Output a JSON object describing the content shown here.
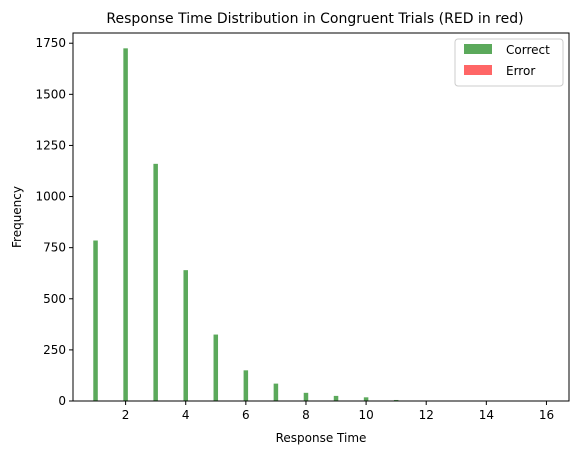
{
  "chart_data": {
    "type": "bar",
    "title": "Response Time Distribution in Congruent Trials (RED in red)",
    "xlabel": "Response Time",
    "ylabel": "Frequency",
    "xlim": [
      0.25,
      16.75
    ],
    "ylim": [
      0,
      1800
    ],
    "xticks": [
      2,
      4,
      6,
      8,
      10,
      12,
      14,
      16
    ],
    "yticks": [
      0,
      250,
      500,
      750,
      1000,
      1250,
      1500,
      1750
    ],
    "bar_width": 0.15,
    "legend_position": "top-right",
    "series": [
      {
        "name": "Correct",
        "color": "#5ba95b",
        "x": [
          1,
          2,
          3,
          4,
          5,
          6,
          7,
          8,
          9,
          10,
          11
        ],
        "values": [
          785,
          1725,
          1160,
          640,
          325,
          150,
          85,
          40,
          25,
          18,
          5
        ]
      },
      {
        "name": "Error",
        "color": "#ff6666",
        "x": [],
        "values": []
      }
    ]
  }
}
